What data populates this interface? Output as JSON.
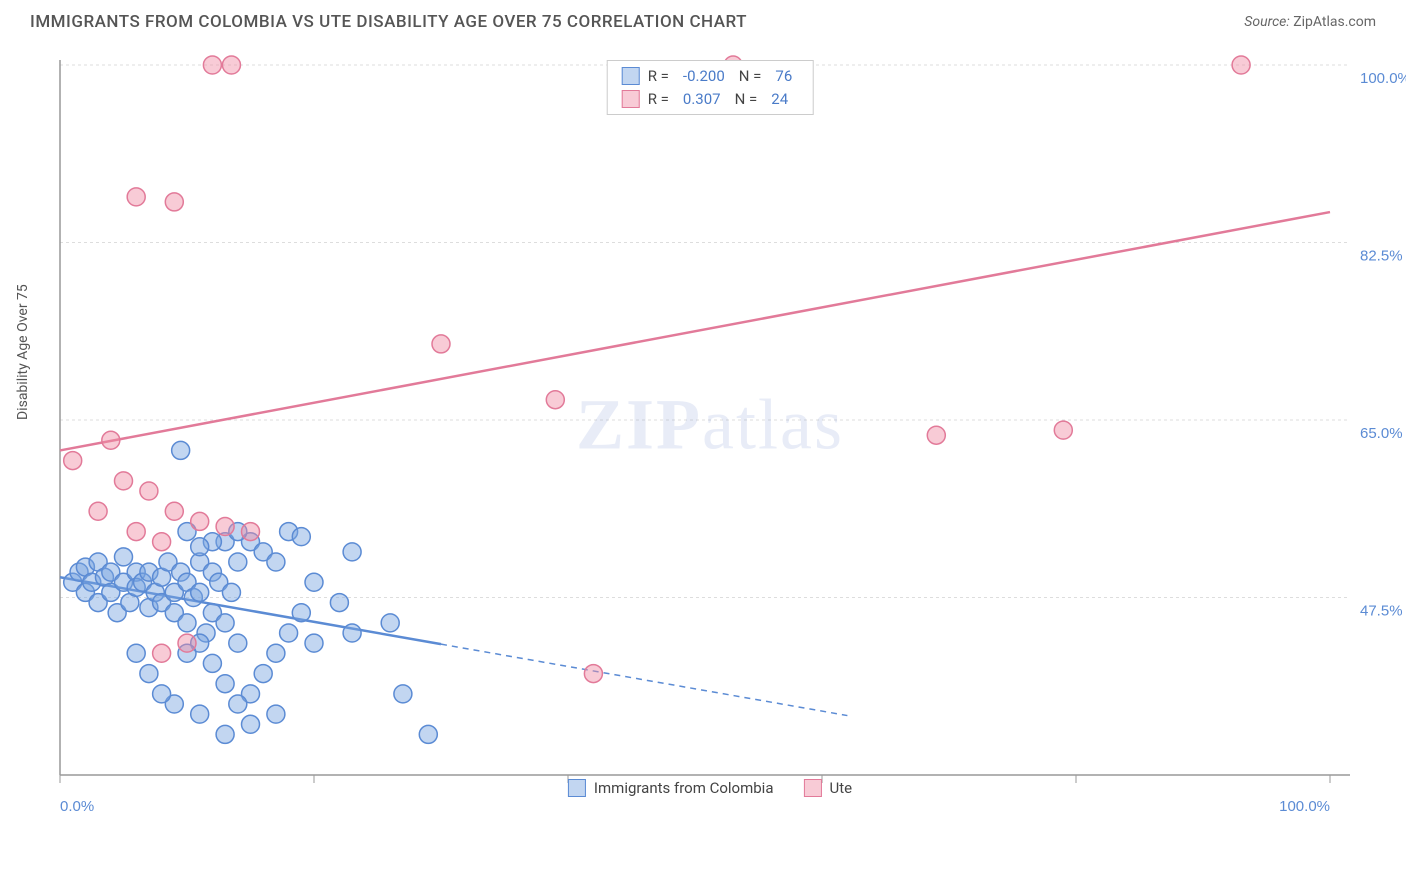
{
  "header": {
    "title": "IMMIGRANTS FROM COLOMBIA VS UTE DISABILITY AGE OVER 75 CORRELATION CHART",
    "source_label": "Source:",
    "source_name": "ZipAtlas.com"
  },
  "chart": {
    "type": "scatter",
    "y_axis_label": "Disability Age Over 75",
    "watermark": "ZIPatlas",
    "background_color": "#ffffff",
    "grid_color": "#dddddd",
    "axis_color": "#999999",
    "label_color": "#5b8bd4",
    "xlim": [
      0,
      100
    ],
    "ylim": [
      30,
      100
    ],
    "x_ticks": [
      0,
      20,
      40,
      60,
      80,
      100
    ],
    "x_tick_labels": [
      "0.0%",
      "",
      "",
      "",
      "",
      "100.0%"
    ],
    "y_ticks": [
      47.5,
      65.0,
      82.5,
      100.0
    ],
    "y_tick_labels": [
      "47.5%",
      "65.0%",
      "82.5%",
      "100.0%"
    ],
    "series": [
      {
        "name": "Immigrants from Colombia",
        "color_fill": "rgba(120,165,225,0.45)",
        "color_stroke": "#5b8bd4",
        "marker_radius": 9,
        "trend": {
          "slope": -0.22,
          "intercept": 49.5,
          "x_solid_end": 30,
          "x_dash_end": 62
        },
        "stats": {
          "R": "-0.200",
          "N": "76"
        },
        "points": [
          [
            1,
            49
          ],
          [
            1.5,
            50
          ],
          [
            2,
            48
          ],
          [
            2,
            50.5
          ],
          [
            2.5,
            49
          ],
          [
            3,
            47
          ],
          [
            3,
            51
          ],
          [
            3.5,
            49.5
          ],
          [
            4,
            48
          ],
          [
            4,
            50
          ],
          [
            4.5,
            46
          ],
          [
            5,
            49
          ],
          [
            5,
            51.5
          ],
          [
            5.5,
            47
          ],
          [
            6,
            50
          ],
          [
            6,
            48.5
          ],
          [
            6.5,
            49
          ],
          [
            7,
            46.5
          ],
          [
            7,
            50
          ],
          [
            7.5,
            48
          ],
          [
            8,
            49.5
          ],
          [
            8,
            47
          ],
          [
            8.5,
            51
          ],
          [
            9,
            48
          ],
          [
            9,
            46
          ],
          [
            9.5,
            50
          ],
          [
            10,
            49
          ],
          [
            10,
            45
          ],
          [
            10.5,
            47.5
          ],
          [
            11,
            51
          ],
          [
            11,
            48
          ],
          [
            11.5,
            44
          ],
          [
            12,
            50
          ],
          [
            12,
            46
          ],
          [
            12.5,
            49
          ],
          [
            13,
            45
          ],
          [
            13,
            53
          ],
          [
            13.5,
            48
          ],
          [
            14,
            51
          ],
          [
            14,
            43
          ],
          [
            9.5,
            62
          ],
          [
            15,
            53
          ],
          [
            16,
            52
          ],
          [
            17,
            51
          ],
          [
            18,
            54
          ],
          [
            19,
            53.5
          ],
          [
            14,
            54
          ],
          [
            12,
            53
          ],
          [
            11,
            52.5
          ],
          [
            10,
            54
          ],
          [
            23,
            52
          ],
          [
            22,
            47
          ],
          [
            20,
            49
          ],
          [
            19,
            46
          ],
          [
            18,
            44
          ],
          [
            17,
            42
          ],
          [
            16,
            40
          ],
          [
            15,
            38
          ],
          [
            14,
            37
          ],
          [
            13,
            39
          ],
          [
            12,
            41
          ],
          [
            11,
            43
          ],
          [
            10,
            42
          ],
          [
            20,
            43
          ],
          [
            23,
            44
          ],
          [
            26,
            45
          ],
          [
            27,
            38
          ],
          [
            29,
            34
          ],
          [
            17,
            36
          ],
          [
            15,
            35
          ],
          [
            13,
            34
          ],
          [
            11,
            36
          ],
          [
            9,
            37
          ],
          [
            8,
            38
          ],
          [
            7,
            40
          ],
          [
            6,
            42
          ]
        ]
      },
      {
        "name": "Ute",
        "color_fill": "rgba(240,140,165,0.45)",
        "color_stroke": "#e27a99",
        "marker_radius": 9,
        "trend": {
          "slope": 0.235,
          "intercept": 62,
          "x_solid_end": 100,
          "x_dash_end": 100
        },
        "stats": {
          "R": "0.307",
          "N": "24"
        },
        "points": [
          [
            12,
            100
          ],
          [
            13.5,
            100
          ],
          [
            53,
            100
          ],
          [
            93,
            100
          ],
          [
            6,
            87
          ],
          [
            9,
            86.5
          ],
          [
            30,
            72.5
          ],
          [
            39,
            67
          ],
          [
            1,
            61
          ],
          [
            4,
            63
          ],
          [
            5,
            59
          ],
          [
            7,
            58
          ],
          [
            9,
            56
          ],
          [
            3,
            56
          ],
          [
            6,
            54
          ],
          [
            8,
            53
          ],
          [
            11,
            55
          ],
          [
            13,
            54.5
          ],
          [
            15,
            54
          ],
          [
            10,
            43
          ],
          [
            8,
            42
          ],
          [
            42,
            40
          ],
          [
            69,
            63.5
          ],
          [
            79,
            64
          ]
        ]
      }
    ],
    "legend_labels": {
      "R_label": "R =",
      "N_label": "N ="
    }
  }
}
